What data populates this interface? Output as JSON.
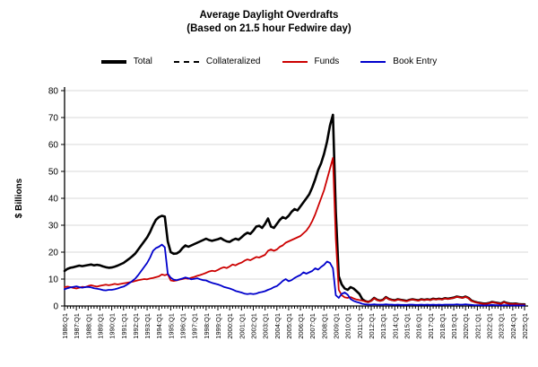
{
  "chart_data": {
    "type": "line",
    "title": "Average Daylight Overdrafts",
    "subtitle": "(Based on 21.5 hour Fedwire day)",
    "ylabel": "$ Billions",
    "ylim": [
      0,
      80
    ],
    "ytick_step": 10,
    "grid": "horizontal-light-gray",
    "legend_position": "top-center",
    "x_frequency": "quarterly",
    "x_range": {
      "start": "1986:Q1",
      "end": "2025:Q1",
      "points": 157
    },
    "x_tick_labels": [
      "1986:Q1",
      "1987:Q1",
      "1988:Q1",
      "1989:Q1",
      "1990:Q1",
      "1991:Q1",
      "1992:Q1",
      "1993:Q1",
      "1994:Q1",
      "1995:Q1",
      "1996:Q1",
      "1997:Q1",
      "1998:Q1",
      "1999:Q1",
      "2000:Q1",
      "2001:Q1",
      "2002:Q1",
      "2003:Q1",
      "2004:Q1",
      "2005:Q1",
      "2006:Q1",
      "2007:Q1",
      "2008:Q1",
      "2009:Q1",
      "2010:Q1",
      "2011:Q1",
      "2012:Q1",
      "2013:Q1",
      "2014:Q1",
      "2015:Q1",
      "2016:Q1",
      "2017:Q1",
      "2018:Q1",
      "2019:Q1",
      "2020:Q1",
      "2021:Q1",
      "2022:Q1",
      "2023:Q1",
      "2024:Q1",
      "2025:Q1"
    ],
    "series": [
      {
        "name": "Total",
        "color": "#000000",
        "width": 2.6,
        "dash": null,
        "start_index": 0,
        "values": [
          13.0,
          13.8,
          14.2,
          14.4,
          14.7,
          15.0,
          14.8,
          15.0,
          15.2,
          15.4,
          15.1,
          15.3,
          15.1,
          14.7,
          14.4,
          14.2,
          14.3,
          14.6,
          15.0,
          15.5,
          16.0,
          16.8,
          17.6,
          18.5,
          19.5,
          21.0,
          22.5,
          24.0,
          25.5,
          27.5,
          30.0,
          32.0,
          33.0,
          33.5,
          33.2,
          24.0,
          20.0,
          19.4,
          19.5,
          20.2,
          21.5,
          22.5,
          22.0,
          22.5,
          23.0,
          23.5,
          24.0,
          24.5,
          25.0,
          24.5,
          24.2,
          24.5,
          24.8,
          25.2,
          24.5,
          24.0,
          23.8,
          24.5,
          25.0,
          24.6,
          25.5,
          26.5,
          27.2,
          26.8,
          28.0,
          29.5,
          29.8,
          29.0,
          30.5,
          32.5,
          29.5,
          29.0,
          30.5,
          32.0,
          33.0,
          32.5,
          33.5,
          35.0,
          36.0,
          35.5,
          37.0,
          38.5,
          40.0,
          41.5,
          44.0,
          47.0,
          50.5,
          53.0,
          56.5,
          61.0,
          67.0,
          71.0,
          35.0,
          11.0,
          8.0,
          6.5,
          6.0,
          7.0,
          6.5,
          5.5,
          4.5,
          2.5,
          1.8,
          1.5,
          2.0,
          3.0,
          2.3,
          2.0,
          2.3,
          3.3,
          2.6,
          2.3,
          2.1,
          2.5,
          2.3,
          2.1,
          1.9,
          2.3,
          2.5,
          2.3,
          2.1,
          2.5,
          2.3,
          2.5,
          2.3,
          2.7,
          2.5,
          2.7,
          2.5,
          2.9,
          2.7,
          2.9,
          3.1,
          3.5,
          3.3,
          3.1,
          3.5,
          3.0,
          2.0,
          1.6,
          1.3,
          1.1,
          0.9,
          0.9,
          1.1,
          1.5,
          1.3,
          1.1,
          0.9,
          1.5,
          1.1,
          0.9,
          0.8,
          0.9,
          0.7,
          0.6,
          0.6
        ]
      },
      {
        "name": "Collateralized",
        "color": "#000000",
        "width": 1.6,
        "dash": "5,3",
        "start_index": 100,
        "values": [
          4.4,
          2.5,
          1.8,
          1.5,
          2.0,
          3.0,
          2.3,
          2.0,
          2.3,
          3.3,
          2.6,
          2.3,
          2.1,
          2.5,
          2.3,
          2.1,
          1.9,
          2.3,
          2.5,
          2.3,
          2.1,
          2.5,
          2.3,
          2.5,
          2.3,
          2.7,
          2.5,
          2.7,
          2.5,
          2.9,
          2.7,
          2.9,
          3.1,
          3.5,
          3.3,
          3.1,
          3.5,
          3.0,
          2.0,
          1.6,
          1.3,
          1.1,
          0.9,
          0.9,
          1.1,
          1.5,
          1.3,
          1.1,
          0.9,
          1.5,
          1.1,
          0.9,
          0.8,
          0.9,
          0.7,
          0.6,
          0.6
        ]
      },
      {
        "name": "Funds",
        "color": "#cc0000",
        "width": 1.8,
        "dash": null,
        "start_index": 0,
        "values": [
          7.0,
          7.2,
          7.0,
          6.7,
          6.5,
          6.8,
          7.1,
          7.0,
          7.4,
          7.7,
          7.4,
          7.2,
          7.5,
          7.7,
          7.9,
          7.7,
          7.9,
          8.2,
          8.0,
          8.2,
          8.4,
          8.6,
          8.8,
          9.0,
          9.3,
          9.6,
          9.8,
          10.0,
          9.9,
          10.2,
          10.4,
          10.7,
          11.0,
          11.7,
          11.4,
          11.8,
          9.5,
          9.3,
          9.5,
          9.8,
          10.0,
          10.3,
          10.1,
          10.5,
          10.8,
          11.2,
          11.5,
          11.9,
          12.3,
          12.8,
          13.1,
          12.9,
          13.4,
          14.0,
          14.4,
          14.1,
          14.7,
          15.4,
          15.1,
          15.7,
          16.1,
          16.8,
          17.3,
          17.0,
          17.6,
          18.2,
          18.0,
          18.5,
          19.0,
          20.5,
          21.0,
          20.5,
          21.0,
          22.0,
          22.5,
          23.5,
          24.0,
          24.5,
          25.0,
          25.5,
          26.0,
          27.0,
          28.0,
          29.5,
          31.5,
          34.0,
          37.0,
          40.0,
          43.0,
          47.0,
          51.0,
          55.0,
          25.0,
          6.0,
          4.0,
          3.2,
          3.0,
          3.3,
          2.8,
          2.4,
          2.2,
          2.0,
          1.7,
          1.5,
          1.9,
          2.9,
          2.2,
          1.9,
          2.2,
          3.2,
          2.5,
          2.2,
          2.0,
          2.4,
          2.2,
          2.0,
          1.8,
          2.2,
          2.4,
          2.2,
          2.0,
          2.4,
          2.2,
          2.4,
          2.2,
          2.6,
          2.4,
          2.6,
          2.4,
          2.8,
          2.6,
          2.8,
          3.0,
          3.4,
          3.2,
          3.0,
          3.4,
          2.9,
          1.9,
          1.5,
          1.2,
          1.0,
          0.8,
          0.8,
          1.0,
          1.4,
          1.2,
          1.0,
          0.8,
          1.4,
          1.0,
          0.8,
          0.7,
          0.8,
          0.6,
          0.5,
          0.5
        ]
      },
      {
        "name": "Book Entry",
        "color": "#0000cc",
        "width": 1.8,
        "dash": null,
        "start_index": 0,
        "values": [
          6.2,
          6.6,
          6.9,
          7.1,
          7.3,
          7.0,
          6.8,
          7.0,
          7.1,
          6.9,
          6.6,
          6.4,
          6.2,
          5.9,
          5.8,
          6.0,
          6.0,
          6.2,
          6.5,
          6.9,
          7.2,
          7.8,
          8.5,
          9.3,
          10.2,
          11.5,
          13.0,
          14.5,
          16.0,
          18.0,
          20.5,
          21.5,
          22.0,
          22.8,
          21.8,
          12.0,
          10.5,
          9.8,
          9.6,
          9.9,
          10.2,
          10.6,
          10.3,
          9.9,
          10.1,
          10.3,
          9.9,
          9.6,
          9.5,
          9.0,
          8.6,
          8.3,
          8.0,
          7.6,
          7.1,
          6.8,
          6.5,
          6.1,
          5.6,
          5.3,
          5.0,
          4.6,
          4.4,
          4.6,
          4.4,
          4.6,
          5.0,
          5.2,
          5.5,
          6.0,
          6.4,
          7.0,
          7.4,
          8.3,
          9.3,
          10.0,
          9.2,
          9.6,
          10.4,
          11.0,
          11.5,
          12.5,
          12.0,
          12.5,
          13.0,
          14.0,
          13.5,
          14.5,
          15.3,
          16.5,
          16.0,
          14.0,
          4.0,
          3.0,
          4.5,
          5.0,
          4.2,
          2.6,
          1.9,
          1.5,
          1.2,
          0.8,
          0.6,
          0.5,
          0.5,
          0.6,
          0.5,
          0.5,
          0.5,
          0.6,
          0.5,
          0.5,
          0.4,
          0.5,
          0.4,
          0.4,
          0.4,
          0.5,
          0.5,
          0.4,
          0.4,
          0.5,
          0.4,
          0.5,
          0.4,
          0.5,
          0.4,
          0.5,
          0.4,
          0.5,
          0.5,
          0.5,
          0.5,
          0.6,
          0.5,
          0.5,
          0.6,
          0.5,
          0.4,
          0.3,
          0.3,
          0.3,
          0.2,
          0.2,
          0.3,
          0.4,
          0.3,
          0.3,
          0.2,
          0.3,
          0.3,
          0.2,
          0.2,
          0.2,
          0.2,
          0.2,
          0.2
        ]
      }
    ]
  }
}
